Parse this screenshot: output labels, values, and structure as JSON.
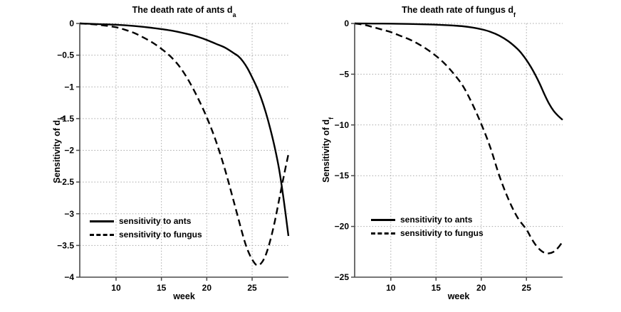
{
  "page": {
    "background": "#ffffff"
  },
  "style": {
    "curve_color": "#000000",
    "grid_color": "#a8a8a8",
    "axis_color": "#4a4a4a",
    "text_color": "#000000"
  },
  "chart_data": [
    {
      "type": "line",
      "title_main": "The death rate of ants d",
      "title_sub": "a",
      "xlabel": "week",
      "ylabel_main": "Sensitivity of d",
      "ylabel_sub": "a",
      "xlim": [
        6,
        29
      ],
      "ylim": [
        -4,
        0
      ],
      "xticks": [
        10,
        15,
        20,
        25
      ],
      "xtick_labels": [
        "10",
        "15",
        "20",
        "25"
      ],
      "yticks": [
        0,
        -0.5,
        -1,
        -1.5,
        -2,
        -2.5,
        -3,
        -3.5,
        -4
      ],
      "ytick_labels": [
        "0",
        "−0.5",
        "−1",
        "−1.5",
        "−2",
        "−2.5",
        "−3",
        "−3.5",
        "−4"
      ],
      "grid": true,
      "legend_position": "southwest",
      "legend": [
        {
          "label": "sensitivity to ants",
          "line": "solid"
        },
        {
          "label": "sensitivity to fungus",
          "line": "dashed"
        }
      ],
      "series": [
        {
          "name": "sensitivity to ants",
          "line": "solid",
          "points": [
            [
              6,
              0
            ],
            [
              8,
              -0.01
            ],
            [
              10,
              -0.02
            ],
            [
              12,
              -0.04
            ],
            [
              14,
              -0.07
            ],
            [
              16,
              -0.11
            ],
            [
              18,
              -0.17
            ],
            [
              19,
              -0.21
            ],
            [
              20,
              -0.26
            ],
            [
              21,
              -0.32
            ],
            [
              22,
              -0.38
            ],
            [
              23,
              -0.47
            ],
            [
              23.5,
              -0.52
            ],
            [
              24,
              -0.6
            ],
            [
              24.5,
              -0.71
            ],
            [
              25,
              -0.85
            ],
            [
              25.5,
              -1.0
            ],
            [
              26,
              -1.18
            ],
            [
              26.5,
              -1.4
            ],
            [
              27,
              -1.66
            ],
            [
              27.5,
              -1.96
            ],
            [
              28,
              -2.32
            ],
            [
              28.5,
              -2.8
            ],
            [
              29,
              -3.35
            ]
          ]
        },
        {
          "name": "sensitivity to fungus",
          "line": "dashed",
          "points": [
            [
              6,
              0
            ],
            [
              8,
              -0.02
            ],
            [
              10,
              -0.06
            ],
            [
              11,
              -0.1
            ],
            [
              12,
              -0.15
            ],
            [
              13,
              -0.22
            ],
            [
              14,
              -0.3
            ],
            [
              15,
              -0.4
            ],
            [
              16,
              -0.52
            ],
            [
              17,
              -0.68
            ],
            [
              18,
              -0.9
            ],
            [
              19,
              -1.17
            ],
            [
              20,
              -1.48
            ],
            [
              21,
              -1.85
            ],
            [
              22,
              -2.3
            ],
            [
              23,
              -2.82
            ],
            [
              24,
              -3.35
            ],
            [
              24.5,
              -3.57
            ],
            [
              25,
              -3.72
            ],
            [
              25.5,
              -3.81
            ],
            [
              26,
              -3.78
            ],
            [
              26.5,
              -3.65
            ],
            [
              27,
              -3.42
            ],
            [
              27.5,
              -3.12
            ],
            [
              28,
              -2.76
            ],
            [
              28.5,
              -2.4
            ],
            [
              29,
              -2.06
            ]
          ]
        }
      ]
    },
    {
      "type": "line",
      "title_main": "The death rate of fungus d",
      "title_sub": "f",
      "xlabel": "week",
      "ylabel_main": "Sensitivity of d",
      "ylabel_sub": "f",
      "xlim": [
        6,
        29
      ],
      "ylim": [
        -25,
        0
      ],
      "xticks": [
        10,
        15,
        20,
        25
      ],
      "xtick_labels": [
        "10",
        "15",
        "20",
        "25"
      ],
      "yticks": [
        0,
        -5,
        -10,
        -15,
        -20,
        -25
      ],
      "ytick_labels": [
        "0",
        "−5",
        "−10",
        "−15",
        "−20",
        "−25"
      ],
      "grid": true,
      "legend_position": "southwest",
      "legend": [
        {
          "label": "sensitivity to ants",
          "line": "solid"
        },
        {
          "label": "sensitivity to fungus",
          "line": "dashed"
        }
      ],
      "series": [
        {
          "name": "sensitivity to ants",
          "line": "solid",
          "points": [
            [
              6,
              0
            ],
            [
              8,
              -0.01
            ],
            [
              10,
              -0.02
            ],
            [
              12,
              -0.05
            ],
            [
              14,
              -0.09
            ],
            [
              16,
              -0.16
            ],
            [
              17,
              -0.21
            ],
            [
              18,
              -0.28
            ],
            [
              19,
              -0.4
            ],
            [
              20,
              -0.57
            ],
            [
              21,
              -0.82
            ],
            [
              22,
              -1.2
            ],
            [
              23,
              -1.75
            ],
            [
              24,
              -2.5
            ],
            [
              24.5,
              -3.0
            ],
            [
              25,
              -3.6
            ],
            [
              25.5,
              -4.3
            ],
            [
              26,
              -5.1
            ],
            [
              26.5,
              -6.0
            ],
            [
              27,
              -7.0
            ],
            [
              27.5,
              -7.9
            ],
            [
              28,
              -8.6
            ],
            [
              28.5,
              -9.1
            ],
            [
              29,
              -9.5
            ]
          ]
        },
        {
          "name": "sensitivity to fungus",
          "line": "dashed",
          "points": [
            [
              6,
              0
            ],
            [
              7,
              -0.12
            ],
            [
              8,
              -0.35
            ],
            [
              9,
              -0.6
            ],
            [
              10,
              -0.85
            ],
            [
              11,
              -1.2
            ],
            [
              12,
              -1.55
            ],
            [
              13,
              -2.0
            ],
            [
              14,
              -2.55
            ],
            [
              15,
              -3.2
            ],
            [
              16,
              -4.0
            ],
            [
              17,
              -5.0
            ],
            [
              18,
              -6.2
            ],
            [
              19,
              -7.9
            ],
            [
              20,
              -9.9
            ],
            [
              21,
              -12.2
            ],
            [
              22,
              -15.0
            ],
            [
              23,
              -17.3
            ],
            [
              24,
              -19.1
            ],
            [
              25,
              -20.3
            ],
            [
              25.5,
              -21.1
            ],
            [
              26,
              -21.8
            ],
            [
              26.5,
              -22.3
            ],
            [
              27,
              -22.6
            ],
            [
              27.5,
              -22.65
            ],
            [
              28,
              -22.5
            ],
            [
              28.5,
              -22.1
            ],
            [
              29,
              -21.5
            ]
          ]
        }
      ]
    }
  ]
}
